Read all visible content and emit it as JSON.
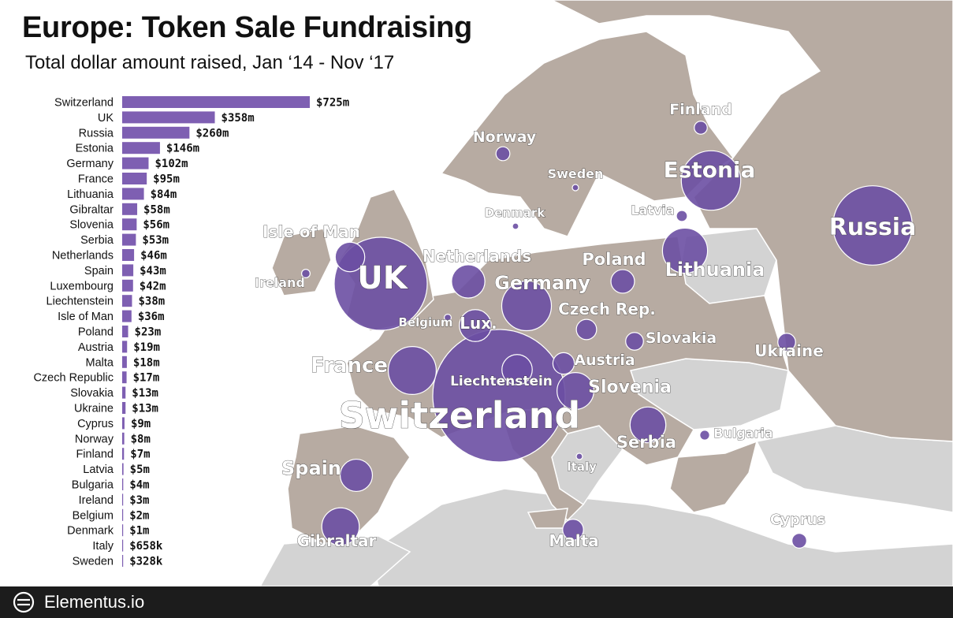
{
  "title": "Europe: Token Sale Fundraising",
  "subtitle": "Total dollar amount raised, Jan ‘14 - Nov ‘17",
  "footer": {
    "brand": "Elementus.io"
  },
  "colors": {
    "bubble": "#6b4fa3",
    "bar": "#7e5fb2",
    "land_focus": "#b7aba2",
    "land_other": "#d3d3d3",
    "sea": "#ffffff"
  },
  "chart_data": [
    {
      "type": "bar",
      "orientation": "horizontal",
      "categories": [
        "Switzerland",
        "UK",
        "Russia",
        "Estonia",
        "Germany",
        "France",
        "Lithuania",
        "Gibraltar",
        "Slovenia",
        "Serbia",
        "Netherlands",
        "Spain",
        "Luxembourg",
        "Liechtenstein",
        "Isle of Man",
        "Poland",
        "Austria",
        "Malta",
        "Czech Republic",
        "Slovakia",
        "Ukraine",
        "Cyprus",
        "Norway",
        "Finland",
        "Latvia",
        "Bulgaria",
        "Ireland",
        "Belgium",
        "Denmark",
        "Italy",
        "Sweden"
      ],
      "values": [
        725,
        358,
        260,
        146,
        102,
        95,
        84,
        58,
        56,
        53,
        46,
        43,
        42,
        38,
        36,
        23,
        19,
        18,
        17,
        13,
        13,
        9,
        8,
        7,
        5,
        4,
        3,
        2,
        1,
        0.658,
        0.328
      ],
      "value_labels": [
        "$725m",
        "$358m",
        "$260m",
        "$146m",
        "$102m",
        "$95m",
        "$84m",
        "$58m",
        "$56m",
        "$53m",
        "$46m",
        "$43m",
        "$42m",
        "$38m",
        "$36m",
        "$23m",
        "$19m",
        "$18m",
        "$17m",
        "$13m",
        "$13m",
        "$9m",
        "$8m",
        "$7m",
        "$5m",
        "$4m",
        "$3m",
        "$2m",
        "$1m",
        "$658k",
        "$328k"
      ],
      "unit": "USD millions"
    },
    {
      "type": "bubble-map",
      "region": "Europe",
      "bubbles": [
        {
          "name": "Switzerland",
          "value": 725
        },
        {
          "name": "UK",
          "value": 358
        },
        {
          "name": "Russia",
          "value": 260
        },
        {
          "name": "Estonia",
          "value": 146
        },
        {
          "name": "Germany",
          "value": 102
        },
        {
          "name": "France",
          "value": 95
        },
        {
          "name": "Lithuania",
          "value": 84
        },
        {
          "name": "Gibraltar",
          "value": 58
        },
        {
          "name": "Slovenia",
          "value": 56
        },
        {
          "name": "Serbia",
          "value": 53
        },
        {
          "name": "Netherlands",
          "value": 46
        },
        {
          "name": "Spain",
          "value": 43
        },
        {
          "name": "Lux.",
          "value": 42
        },
        {
          "name": "Liechtenstein",
          "value": 38
        },
        {
          "name": "Isle of Man",
          "value": 36
        },
        {
          "name": "Poland",
          "value": 23
        },
        {
          "name": "Austria",
          "value": 19
        },
        {
          "name": "Malta",
          "value": 18
        },
        {
          "name": "Czech Rep.",
          "value": 17
        },
        {
          "name": "Slovakia",
          "value": 13
        },
        {
          "name": "Ukraine",
          "value": 13
        },
        {
          "name": "Cyprus",
          "value": 9
        },
        {
          "name": "Norway",
          "value": 8
        },
        {
          "name": "Finland",
          "value": 7
        },
        {
          "name": "Latvia",
          "value": 5
        },
        {
          "name": "Bulgaria",
          "value": 4
        },
        {
          "name": "Ireland",
          "value": 3
        },
        {
          "name": "Belgium",
          "value": 2
        },
        {
          "name": "Denmark",
          "value": 1
        },
        {
          "name": "Italy",
          "value": 0.658
        },
        {
          "name": "Sweden",
          "value": 0.328
        }
      ]
    }
  ]
}
